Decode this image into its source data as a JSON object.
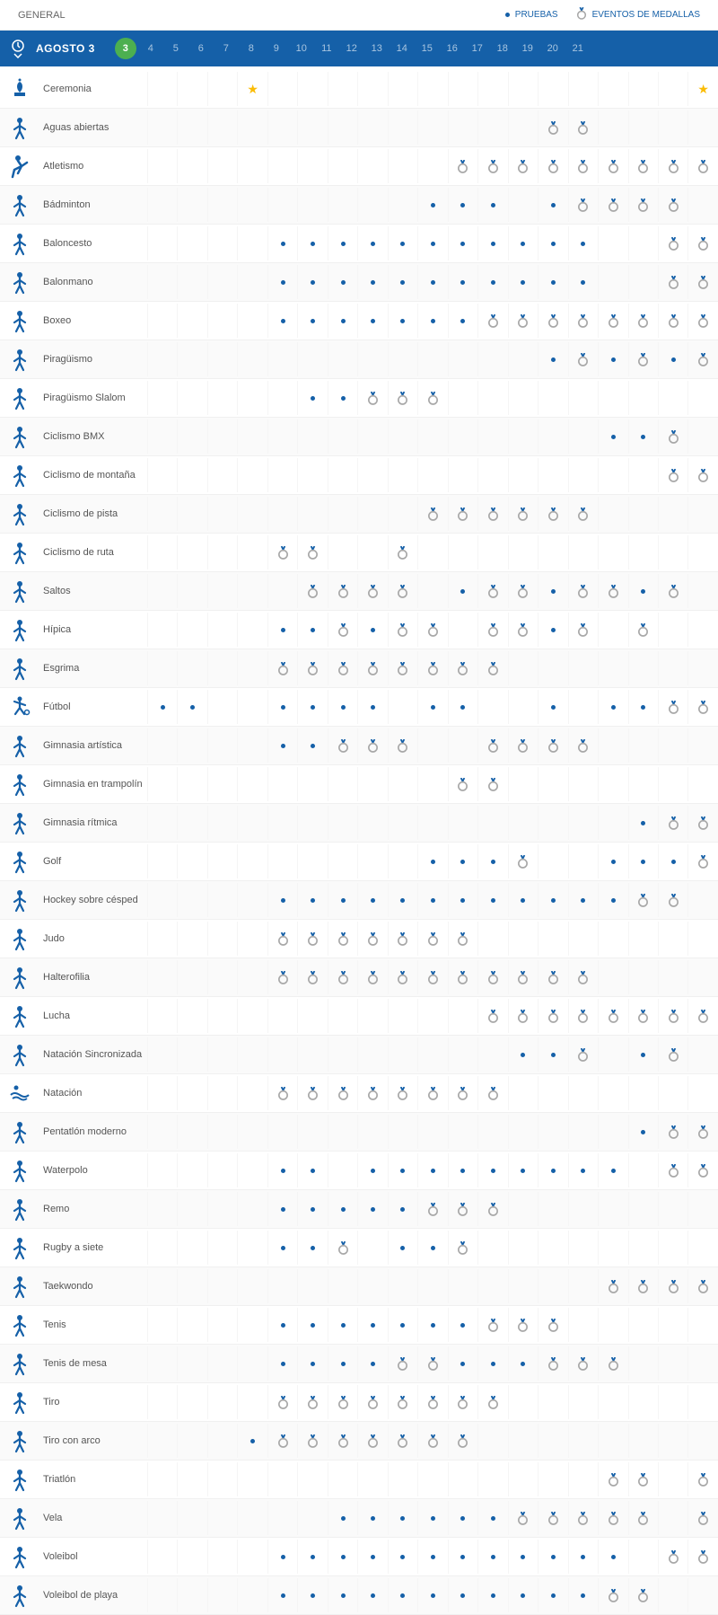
{
  "header": {
    "title": "GENERAL",
    "legend_pruebas": "PRUEBAS",
    "legend_medallas": "EVENTOS DE MEDALLAS"
  },
  "colors": {
    "brand": "#1560a8",
    "active_day": "#4caf50",
    "star": "#fbbc04",
    "medal_ring": "#a8a8a8",
    "medal_ribbon": "#1560a8"
  },
  "date_bar": {
    "month_label": "AGOSTO  3",
    "days": [
      3,
      4,
      5,
      6,
      7,
      8,
      9,
      10,
      11,
      12,
      13,
      14,
      15,
      16,
      17,
      18,
      19,
      20,
      21
    ],
    "active_day": 3
  },
  "marks": {
    "dot": "d",
    "medal": "m",
    "star": "s",
    "empty": ""
  },
  "sports": [
    {
      "name": "Ceremonia",
      "icon": "ceremony",
      "cells": [
        "",
        "",
        "",
        "s",
        "",
        "",
        "",
        "",
        "",
        "",
        "",
        "",
        "",
        "",
        "",
        "",
        "",
        "",
        "s"
      ]
    },
    {
      "name": "Aguas abiertas",
      "icon": "openwater",
      "cells": [
        "",
        "",
        "",
        "",
        "",
        "",
        "",
        "",
        "",
        "",
        "",
        "",
        "",
        "m",
        "m",
        "",
        "",
        "",
        ""
      ]
    },
    {
      "name": "Atletismo",
      "icon": "athletics",
      "cells": [
        "",
        "",
        "",
        "",
        "",
        "",
        "",
        "",
        "",
        "",
        "m",
        "m",
        "m",
        "m",
        "m",
        "m",
        "m",
        "m",
        "m"
      ]
    },
    {
      "name": "Bádminton",
      "icon": "badminton",
      "cells": [
        "",
        "",
        "",
        "",
        "",
        "",
        "",
        "",
        "",
        "d",
        "d",
        "d",
        "",
        "d",
        "m",
        "m",
        "m",
        "m",
        ""
      ]
    },
    {
      "name": "Baloncesto",
      "icon": "basketball",
      "cells": [
        "",
        "",
        "",
        "",
        "d",
        "d",
        "d",
        "d",
        "d",
        "d",
        "d",
        "d",
        "d",
        "d",
        "d",
        "",
        "",
        "m",
        "m"
      ]
    },
    {
      "name": "Balonmano",
      "icon": "handball",
      "cells": [
        "",
        "",
        "",
        "",
        "d",
        "d",
        "d",
        "d",
        "d",
        "d",
        "d",
        "d",
        "d",
        "d",
        "d",
        "",
        "",
        "m",
        "m"
      ]
    },
    {
      "name": "Boxeo",
      "icon": "boxing",
      "cells": [
        "",
        "",
        "",
        "",
        "d",
        "d",
        "d",
        "d",
        "d",
        "d",
        "d",
        "m",
        "m",
        "m",
        "m",
        "m",
        "m",
        "m",
        "m"
      ]
    },
    {
      "name": "Piragüismo",
      "icon": "canoe",
      "cells": [
        "",
        "",
        "",
        "",
        "",
        "",
        "",
        "",
        "",
        "",
        "",
        "",
        "",
        "d",
        "m",
        "d",
        "m",
        "d",
        "m"
      ]
    },
    {
      "name": "Piragüismo Slalom",
      "icon": "canoeslalom",
      "cells": [
        "",
        "",
        "",
        "",
        "",
        "d",
        "d",
        "m",
        "m",
        "m",
        "",
        "",
        "",
        "",
        "",
        "",
        "",
        "",
        ""
      ]
    },
    {
      "name": "Ciclismo BMX",
      "icon": "bmx",
      "cells": [
        "",
        "",
        "",
        "",
        "",
        "",
        "",
        "",
        "",
        "",
        "",
        "",
        "",
        "",
        "",
        "d",
        "d",
        "m",
        ""
      ]
    },
    {
      "name": "Ciclismo de montaña",
      "icon": "mtb",
      "cells": [
        "",
        "",
        "",
        "",
        "",
        "",
        "",
        "",
        "",
        "",
        "",
        "",
        "",
        "",
        "",
        "",
        "",
        "m",
        "m"
      ]
    },
    {
      "name": "Ciclismo de pista",
      "icon": "trackcycling",
      "cells": [
        "",
        "",
        "",
        "",
        "",
        "",
        "",
        "",
        "",
        "m",
        "m",
        "m",
        "m",
        "m",
        "m",
        "",
        "",
        "",
        ""
      ]
    },
    {
      "name": "Ciclismo de ruta",
      "icon": "roadcycling",
      "cells": [
        "",
        "",
        "",
        "",
        "m",
        "m",
        "",
        "",
        "m",
        "",
        "",
        "",
        "",
        "",
        "",
        "",
        "",
        "",
        ""
      ]
    },
    {
      "name": "Saltos",
      "icon": "diving",
      "cells": [
        "",
        "",
        "",
        "",
        "",
        "m",
        "m",
        "m",
        "m",
        "",
        "d",
        "m",
        "m",
        "d",
        "m",
        "m",
        "d",
        "m",
        ""
      ]
    },
    {
      "name": "Hípica",
      "icon": "equestrian",
      "cells": [
        "",
        "",
        "",
        "",
        "d",
        "d",
        "m",
        "d",
        "m",
        "m",
        "",
        "m",
        "m",
        "d",
        "m",
        "",
        "m",
        "",
        ""
      ]
    },
    {
      "name": "Esgrima",
      "icon": "fencing",
      "cells": [
        "",
        "",
        "",
        "",
        "m",
        "m",
        "m",
        "m",
        "m",
        "m",
        "m",
        "m",
        "",
        "",
        "",
        "",
        "",
        "",
        ""
      ]
    },
    {
      "name": "Fútbol",
      "icon": "football",
      "cells": [
        "d",
        "d",
        "",
        "",
        "d",
        "d",
        "d",
        "d",
        "",
        "d",
        "d",
        "",
        "",
        "d",
        "",
        "d",
        "d",
        "m",
        "m"
      ]
    },
    {
      "name": "Gimnasia artística",
      "icon": "gymnastics",
      "cells": [
        "",
        "",
        "",
        "",
        "d",
        "d",
        "m",
        "m",
        "m",
        "",
        "",
        "m",
        "m",
        "m",
        "m",
        "",
        "",
        "",
        ""
      ]
    },
    {
      "name": "Gimnasia en trampolín",
      "icon": "trampoline",
      "cells": [
        "",
        "",
        "",
        "",
        "",
        "",
        "",
        "",
        "",
        "",
        "m",
        "m",
        "",
        "",
        "",
        "",
        "",
        "",
        ""
      ]
    },
    {
      "name": "Gimnasia rítmica",
      "icon": "rhythmic",
      "cells": [
        "",
        "",
        "",
        "",
        "",
        "",
        "",
        "",
        "",
        "",
        "",
        "",
        "",
        "",
        "",
        "",
        "d",
        "m",
        "m"
      ]
    },
    {
      "name": "Golf",
      "icon": "golf",
      "cells": [
        "",
        "",
        "",
        "",
        "",
        "",
        "",
        "",
        "",
        "d",
        "d",
        "d",
        "m",
        "",
        "",
        "d",
        "d",
        "d",
        "m"
      ]
    },
    {
      "name": "Hockey sobre césped",
      "icon": "hockey",
      "cells": [
        "",
        "",
        "",
        "",
        "d",
        "d",
        "d",
        "d",
        "d",
        "d",
        "d",
        "d",
        "d",
        "d",
        "d",
        "d",
        "m",
        "m",
        ""
      ]
    },
    {
      "name": "Judo",
      "icon": "judo",
      "cells": [
        "",
        "",
        "",
        "",
        "m",
        "m",
        "m",
        "m",
        "m",
        "m",
        "m",
        "",
        "",
        "",
        "",
        "",
        "",
        "",
        ""
      ]
    },
    {
      "name": "Halterofilia",
      "icon": "weightlifting",
      "cells": [
        "",
        "",
        "",
        "",
        "m",
        "m",
        "m",
        "m",
        "m",
        "m",
        "m",
        "m",
        "m",
        "m",
        "m",
        "",
        "",
        "",
        ""
      ]
    },
    {
      "name": "Lucha",
      "icon": "wrestling",
      "cells": [
        "",
        "",
        "",
        "",
        "",
        "",
        "",
        "",
        "",
        "",
        "",
        "m",
        "m",
        "m",
        "m",
        "m",
        "m",
        "m",
        "m"
      ]
    },
    {
      "name": "Natación Sincronizada",
      "icon": "synchro",
      "cells": [
        "",
        "",
        "",
        "",
        "",
        "",
        "",
        "",
        "",
        "",
        "",
        "",
        "d",
        "d",
        "m",
        "",
        "d",
        "m",
        ""
      ]
    },
    {
      "name": "Natación",
      "icon": "swimming",
      "cells": [
        "",
        "",
        "",
        "",
        "m",
        "m",
        "m",
        "m",
        "m",
        "m",
        "m",
        "m",
        "",
        "",
        "",
        "",
        "",
        "",
        ""
      ]
    },
    {
      "name": "Pentatlón moderno",
      "icon": "pentathlon",
      "cells": [
        "",
        "",
        "",
        "",
        "",
        "",
        "",
        "",
        "",
        "",
        "",
        "",
        "",
        "",
        "",
        "",
        "d",
        "m",
        "m"
      ]
    },
    {
      "name": "Waterpolo",
      "icon": "waterpolo",
      "cells": [
        "",
        "",
        "",
        "",
        "d",
        "d",
        "",
        "d",
        "d",
        "d",
        "d",
        "d",
        "d",
        "d",
        "d",
        "d",
        "",
        "m",
        "m"
      ]
    },
    {
      "name": "Remo",
      "icon": "rowing",
      "cells": [
        "",
        "",
        "",
        "",
        "d",
        "d",
        "d",
        "d",
        "d",
        "m",
        "m",
        "m",
        "",
        "",
        "",
        "",
        "",
        "",
        ""
      ]
    },
    {
      "name": "Rugby a siete",
      "icon": "rugby",
      "cells": [
        "",
        "",
        "",
        "",
        "d",
        "d",
        "m",
        "",
        "d",
        "d",
        "m",
        "",
        "",
        "",
        "",
        "",
        "",
        "",
        ""
      ]
    },
    {
      "name": "Taekwondo",
      "icon": "taekwondo",
      "cells": [
        "",
        "",
        "",
        "",
        "",
        "",
        "",
        "",
        "",
        "",
        "",
        "",
        "",
        "",
        "",
        "m",
        "m",
        "m",
        "m"
      ]
    },
    {
      "name": "Tenis",
      "icon": "tennis",
      "cells": [
        "",
        "",
        "",
        "",
        "d",
        "d",
        "d",
        "d",
        "d",
        "d",
        "d",
        "m",
        "m",
        "m",
        "",
        "",
        "",
        "",
        ""
      ]
    },
    {
      "name": "Tenis de mesa",
      "icon": "tabletennis",
      "cells": [
        "",
        "",
        "",
        "",
        "d",
        "d",
        "d",
        "d",
        "m",
        "m",
        "d",
        "d",
        "d",
        "m",
        "m",
        "m",
        "",
        "",
        ""
      ]
    },
    {
      "name": "Tiro",
      "icon": "shooting",
      "cells": [
        "",
        "",
        "",
        "",
        "m",
        "m",
        "m",
        "m",
        "m",
        "m",
        "m",
        "m",
        "",
        "",
        "",
        "",
        "",
        "",
        ""
      ]
    },
    {
      "name": "Tiro con arco",
      "icon": "archery",
      "cells": [
        "",
        "",
        "",
        "d",
        "m",
        "m",
        "m",
        "m",
        "m",
        "m",
        "m",
        "",
        "",
        "",
        "",
        "",
        "",
        "",
        ""
      ]
    },
    {
      "name": "Triatlón",
      "icon": "triathlon",
      "cells": [
        "",
        "",
        "",
        "",
        "",
        "",
        "",
        "",
        "",
        "",
        "",
        "",
        "",
        "",
        "",
        "m",
        "m",
        "",
        "m"
      ]
    },
    {
      "name": "Vela",
      "icon": "sailing",
      "cells": [
        "",
        "",
        "",
        "",
        "",
        "",
        "d",
        "d",
        "d",
        "d",
        "d",
        "d",
        "m",
        "m",
        "m",
        "m",
        "m",
        "",
        "m"
      ]
    },
    {
      "name": "Voleibol",
      "icon": "volleyball",
      "cells": [
        "",
        "",
        "",
        "",
        "d",
        "d",
        "d",
        "d",
        "d",
        "d",
        "d",
        "d",
        "d",
        "d",
        "d",
        "d",
        "",
        "m",
        "m"
      ]
    },
    {
      "name": "Voleibol de playa",
      "icon": "beachvolley",
      "cells": [
        "",
        "",
        "",
        "",
        "d",
        "d",
        "d",
        "d",
        "d",
        "d",
        "d",
        "d",
        "d",
        "d",
        "d",
        "m",
        "m",
        "",
        ""
      ]
    }
  ]
}
